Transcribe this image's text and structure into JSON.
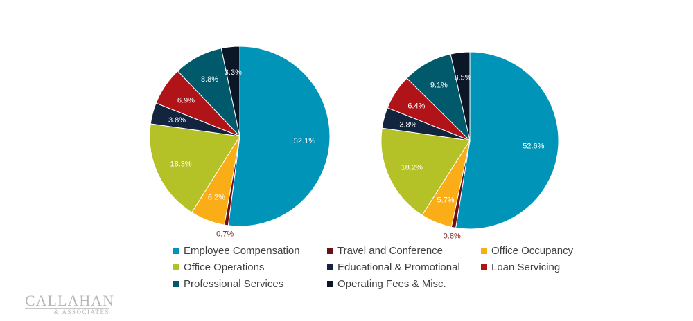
{
  "colors": {
    "Employee Compensation": "#0095B8",
    "Travel and Conference": "#6B1016",
    "Office Occupancy": "#FBAD17",
    "Office Operations": "#B5C227",
    "Educational & Promotional": "#13253E",
    "Loan Servicing": "#B01418",
    "Professional Services": "#005A6B",
    "Operating Fees & Misc.": "#0B1626"
  },
  "chart_data": [
    {
      "type": "pie",
      "labels": [
        "Employee Compensation",
        "Travel and Conference",
        "Office Occupancy",
        "Office Operations",
        "Educational & Promotional",
        "Loan Servicing",
        "Professional Services",
        "Operating Fees & Misc."
      ],
      "values": [
        52.1,
        0.7,
        6.2,
        18.3,
        3.8,
        6.9,
        8.8,
        3.3
      ],
      "data_labels": [
        "52.1%",
        "0.7%",
        "6.2%",
        "18.3%",
        "3.8%",
        "6.9%",
        "8.8%",
        "3.3%"
      ]
    },
    {
      "type": "pie",
      "labels": [
        "Employee Compensation",
        "Travel and Conference",
        "Office Occupancy",
        "Office Operations",
        "Educational & Promotional",
        "Loan Servicing",
        "Professional Services",
        "Operating Fees & Misc."
      ],
      "values": [
        52.6,
        0.8,
        5.7,
        18.2,
        3.8,
        6.4,
        9.1,
        3.5
      ],
      "data_labels": [
        "52.6%",
        "0.8%",
        "5.7%",
        "18.2%",
        "3.8%",
        "6.4%",
        "9.1%",
        "3.5%"
      ]
    }
  ],
  "legend": {
    "placement": "bottom",
    "items": [
      {
        "label": "Employee Compensation",
        "color": "#0095B8"
      },
      {
        "label": "Travel and Conference",
        "color": "#6B1016"
      },
      {
        "label": "Office Occupancy",
        "color": "#FBAD17"
      },
      {
        "label": "Office Operations",
        "color": "#B5C227"
      },
      {
        "label": "Educational & Promotional",
        "color": "#13253E"
      },
      {
        "label": "Loan Servicing",
        "color": "#B01418"
      },
      {
        "label": "Professional Services",
        "color": "#005A6B"
      },
      {
        "label": "Operating Fees & Misc.",
        "color": "#0B1626"
      }
    ]
  },
  "logo": {
    "main": "CALLAHAN",
    "sub": "& ASSOCIATES"
  }
}
